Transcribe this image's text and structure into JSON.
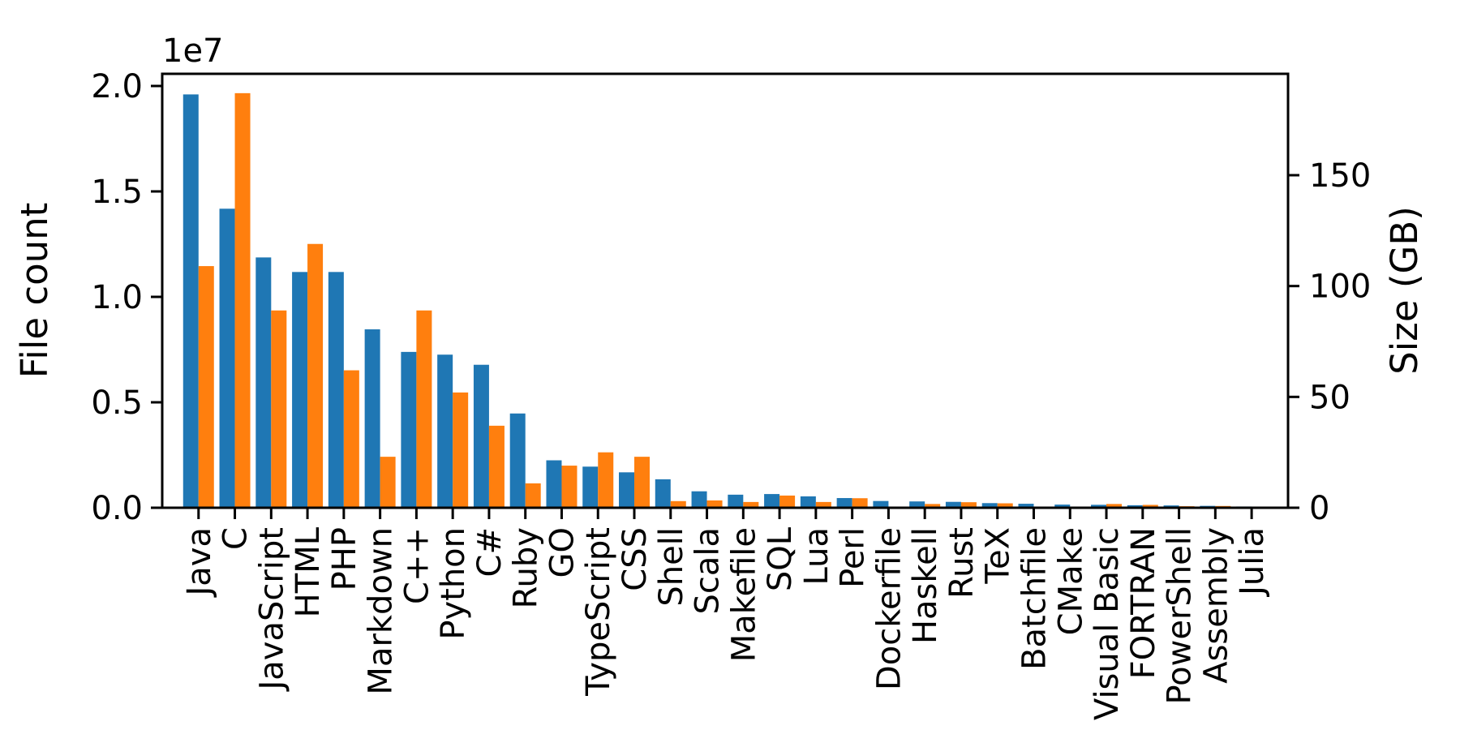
{
  "figure": {
    "background": "#ffffff",
    "plot_border_color": "#000000"
  },
  "axes": {
    "left": {
      "label": "File count",
      "color": "#1f77b4",
      "offset_text": "1e7",
      "tick_labels": [
        "0.0",
        "0.5",
        "1.0",
        "1.5",
        "2.0"
      ],
      "tick_values": [
        0,
        5000000,
        10000000,
        15000000,
        20000000
      ]
    },
    "right": {
      "label": "Size (GB)",
      "color": "#ff7f0e",
      "tick_labels": [
        "0",
        "50",
        "100",
        "150"
      ],
      "tick_values": [
        0,
        50,
        100,
        150
      ]
    }
  },
  "chart_data": {
    "type": "bar",
    "title": "",
    "xlabel": "",
    "grid": false,
    "legend": "none",
    "categories": [
      "Java",
      "C",
      "JavaScript",
      "HTML",
      "PHP",
      "Markdown",
      "C++",
      "Python",
      "C#",
      "Ruby",
      "GO",
      "TypeScript",
      "CSS",
      "Shell",
      "Scala",
      "Makefile",
      "SQL",
      "Lua",
      "Perl",
      "Dockerfile",
      "Haskell",
      "Rust",
      "TeX",
      "Batchfile",
      "CMake",
      "Visual Basic",
      "FORTRAN",
      "PowerShell",
      "Assembly",
      "Julia"
    ],
    "series": [
      {
        "name": "File count",
        "axis": "left",
        "color": "#1f77b4",
        "ylabel": "File count",
        "ylim": [
          0,
          20580000
        ],
        "values": [
          19600000,
          14180000,
          11870000,
          11180000,
          11180000,
          8460000,
          7390000,
          7260000,
          6780000,
          4470000,
          2250000,
          1950000,
          1680000,
          1350000,
          780000,
          620000,
          650000,
          540000,
          460000,
          320000,
          300000,
          280000,
          220000,
          190000,
          150000,
          140000,
          120000,
          110000,
          90000,
          60000
        ]
      },
      {
        "name": "Size (GB)",
        "axis": "right",
        "color": "#ff7f0e",
        "ylabel": "Size (GB)",
        "ylim": [
          0,
          196
        ],
        "values": [
          109,
          187,
          89,
          119,
          62,
          23,
          89,
          52,
          37,
          11,
          19,
          25,
          23,
          3,
          3.3,
          2.6,
          5.5,
          2.6,
          4.3,
          0.4,
          1.7,
          2.5,
          2.0,
          0.4,
          0.4,
          1.7,
          1.3,
          0.7,
          0.8,
          0.3
        ]
      }
    ]
  }
}
